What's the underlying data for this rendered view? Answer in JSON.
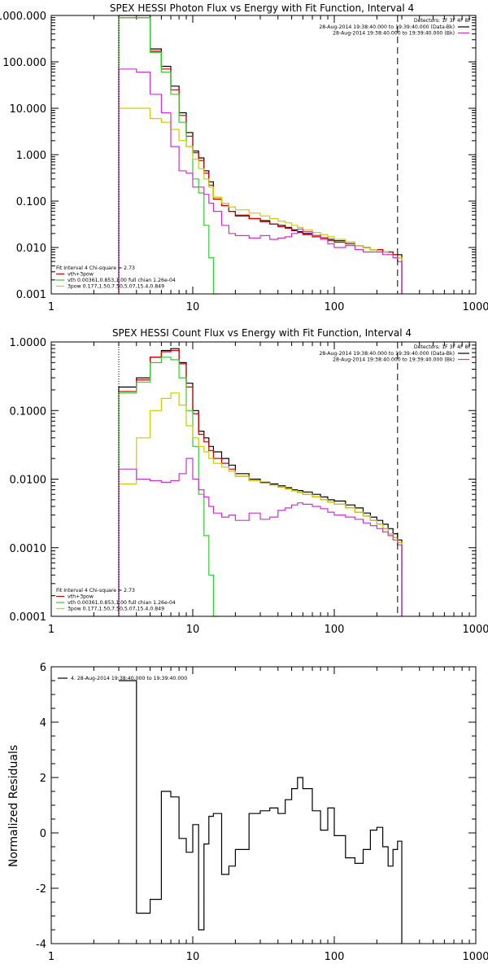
{
  "chart_data": [
    {
      "type": "line",
      "title": "SPEX HESSI Photon Flux vs Energy with Fit Function, Interval 4",
      "xlabel": "",
      "ylabel": "",
      "xscale": "log",
      "yscale": "log",
      "xlim": [
        1,
        1000
      ],
      "ylim": [
        0.001,
        1000
      ],
      "xticks": [
        "1",
        "10",
        "100",
        "1000"
      ],
      "yticks": [
        "1000.000",
        "100.000",
        "10.000",
        "1.000",
        "0.100",
        "0.010",
        "0.001"
      ],
      "detector_text": "Detectors: 1F 3F 4F 8F",
      "time_labels": [
        {
          "text": "28-Aug-2014 19:38:40.000 to 19:39:40.000 (Data-Bk)",
          "color": "#000000"
        },
        {
          "text": "28-Aug-2014 19:38:40.000 to 19:39:40.000 (Bk)",
          "color": "#cc33cc"
        }
      ],
      "fit_header": "Fit Interval 4   Chi-square = 2.73",
      "legend": [
        {
          "text": "vth+3pow",
          "color": "#cc0000"
        },
        {
          "text": "vth 0.00361,0.853,1.00  full chian 1.26e-04",
          "color": "#33cc33"
        },
        {
          "text": "3pow 0.177,1.50,7.50,5.07,15.4,0.849",
          "color": "#cccc00"
        }
      ],
      "fit_range_kev": [
        3,
        280
      ],
      "series": [
        {
          "name": "Data-Bk",
          "color": "#000000",
          "x": [
            3,
            4,
            5,
            6,
            7,
            8,
            9,
            10,
            11,
            12,
            13,
            14,
            16,
            18,
            20,
            25,
            30,
            35,
            40,
            45,
            50,
            55,
            60,
            70,
            80,
            90,
            100,
            120,
            140,
            160,
            180,
            200,
            220,
            240,
            260,
            280
          ],
          "y": [
            1000,
            1000,
            190,
            80,
            30,
            8,
            3,
            1.2,
            0.85,
            0.45,
            0.26,
            0.12,
            0.08,
            0.06,
            0.048,
            0.042,
            0.038,
            0.032,
            0.03,
            0.027,
            0.024,
            0.022,
            0.02,
            0.018,
            0.016,
            0.015,
            0.014,
            0.013,
            0.011,
            0.01,
            0.009,
            0.009,
            0.008,
            0.008,
            0.007,
            0.007
          ]
        },
        {
          "name": "vth+3pow",
          "color": "#cc0000",
          "x": [
            3,
            4,
            5,
            6,
            7,
            8,
            9,
            10,
            11,
            12,
            13,
            14,
            16,
            18,
            20,
            25,
            30,
            35,
            40,
            45,
            50,
            55,
            60,
            70,
            80,
            90,
            100,
            120,
            140,
            160,
            180,
            200,
            220,
            240,
            260,
            280
          ],
          "y": [
            900,
            900,
            170,
            70,
            25,
            7,
            2.5,
            1.1,
            0.75,
            0.4,
            0.22,
            0.11,
            0.08,
            0.06,
            0.05,
            0.042,
            0.036,
            0.032,
            0.028,
            0.026,
            0.023,
            0.021,
            0.019,
            0.017,
            0.016,
            0.014,
            0.013,
            0.012,
            0.011,
            0.01,
            0.009,
            0.009,
            0.008,
            0.008,
            0.007,
            0.006
          ]
        },
        {
          "name": "vth",
          "color": "#33cc33",
          "x": [
            3,
            4,
            5,
            6,
            7,
            8,
            9,
            10,
            11,
            12,
            13,
            14
          ],
          "y": [
            900,
            900,
            160,
            60,
            20,
            5,
            1.5,
            0.3,
            0.15,
            0.03,
            0.006,
            0.001
          ]
        },
        {
          "name": "3pow",
          "color": "#cccc00",
          "x": [
            3,
            4,
            5,
            6,
            7,
            8,
            9,
            10,
            11,
            12,
            13,
            14,
            16,
            18,
            20,
            25,
            30,
            35,
            40,
            45,
            50,
            55,
            60,
            70,
            80,
            90,
            100,
            120,
            140,
            160,
            180,
            200,
            220,
            240,
            260,
            280
          ],
          "y": [
            10,
            10,
            6,
            5,
            3.5,
            2,
            1.5,
            0.8,
            0.5,
            0.3,
            0.2,
            0.12,
            0.09,
            0.075,
            0.065,
            0.055,
            0.048,
            0.042,
            0.037,
            0.034,
            0.03,
            0.027,
            0.024,
            0.021,
            0.019,
            0.017,
            0.015,
            0.013,
            0.011,
            0.01,
            0.009,
            0.008,
            0.008,
            0.007,
            0.006,
            0.006
          ]
        },
        {
          "name": "Bk",
          "color": "#cc33cc",
          "x": [
            3,
            4,
            5,
            6,
            7,
            8,
            9,
            10,
            11,
            12,
            13,
            14,
            16,
            18,
            20,
            25,
            30,
            35,
            40,
            45,
            50,
            55,
            60,
            70,
            80,
            90,
            100,
            120,
            140,
            160,
            180,
            200,
            220,
            240,
            260,
            280
          ],
          "y": [
            70,
            60,
            20,
            8,
            1.5,
            0.45,
            0.4,
            0.2,
            0.2,
            0.14,
            0.09,
            0.06,
            0.03,
            0.02,
            0.018,
            0.016,
            0.018,
            0.015,
            0.016,
            0.017,
            0.02,
            0.025,
            0.022,
            0.018,
            0.015,
            0.012,
            0.01,
            0.011,
            0.009,
            0.008,
            0.008,
            0.008,
            0.007,
            0.007,
            0.006,
            0.005
          ]
        }
      ]
    },
    {
      "type": "line",
      "title": "SPEX HESSI Count Flux vs Energy with Fit Function, Interval 4",
      "xlabel": "",
      "ylabel": "",
      "xscale": "log",
      "yscale": "log",
      "xlim": [
        1,
        1000
      ],
      "ylim": [
        0.0001,
        1
      ],
      "xticks": [
        "1",
        "10",
        "100",
        "1000"
      ],
      "yticks": [
        "1.0000",
        "0.1000",
        "0.0100",
        "0.0010",
        "0.0001"
      ],
      "detector_text": "Detectors: 1F 3F 4F 8F",
      "time_labels": [
        {
          "text": "28-Aug-2014 19:38:40.000 to 19:39:40.000 (Data-Bk)",
          "color": "#000000"
        },
        {
          "text": "28-Aug-2014 19:38:40.000 to 19:39:40.000 (Bk)",
          "color": "#cc33cc"
        }
      ],
      "fit_header": "Fit Interval 4   Chi-square = 2.73",
      "legend": [
        {
          "text": "vth+3pow",
          "color": "#cc0000"
        },
        {
          "text": "vth 0.00361,0.853,1.00  full chian 1.26e-04",
          "color": "#33cc33"
        },
        {
          "text": "3pow 0.177,1.50,7.50,5.07,15.4,0.849",
          "color": "#cccc00"
        }
      ],
      "fit_range_kev": [
        3,
        280
      ],
      "series": [
        {
          "name": "Data-Bk",
          "color": "#000000",
          "x": [
            3,
            4,
            5,
            6,
            7,
            8,
            9,
            10,
            11,
            12,
            13,
            14,
            16,
            18,
            20,
            25,
            30,
            35,
            40,
            45,
            50,
            55,
            60,
            70,
            80,
            90,
            100,
            120,
            140,
            160,
            180,
            200,
            220,
            240,
            260,
            280
          ],
          "y": [
            0.22,
            0.3,
            0.6,
            0.75,
            0.8,
            0.5,
            0.25,
            0.1,
            0.05,
            0.04,
            0.03,
            0.025,
            0.02,
            0.016,
            0.012,
            0.01,
            0.009,
            0.0085,
            0.008,
            0.0075,
            0.007,
            0.0068,
            0.0065,
            0.006,
            0.0055,
            0.005,
            0.0048,
            0.0042,
            0.0038,
            0.0032,
            0.0028,
            0.0025,
            0.0022,
            0.0019,
            0.0016,
            0.0013
          ]
        },
        {
          "name": "vth+3pow",
          "color": "#cc0000",
          "x": [
            3,
            4,
            5,
            6,
            7,
            8,
            9,
            10,
            11,
            12,
            13,
            14,
            16,
            18,
            20,
            25,
            30,
            35,
            40,
            45,
            50,
            55,
            60,
            70,
            80,
            90,
            100,
            120,
            140,
            160,
            180,
            200,
            220,
            240,
            260,
            280
          ],
          "y": [
            0.19,
            0.28,
            0.6,
            0.72,
            0.75,
            0.48,
            0.22,
            0.09,
            0.045,
            0.035,
            0.026,
            0.02,
            0.017,
            0.014,
            0.011,
            0.0095,
            0.0088,
            0.0082,
            0.0077,
            0.0072,
            0.0068,
            0.0064,
            0.006,
            0.0055,
            0.005,
            0.0046,
            0.0043,
            0.0038,
            0.0033,
            0.0029,
            0.0025,
            0.0022,
            0.0019,
            0.0016,
            0.0014,
            0.0012
          ]
        },
        {
          "name": "vth",
          "color": "#33cc33",
          "x": [
            3,
            4,
            5,
            6,
            7,
            8,
            9,
            10,
            11,
            12,
            13,
            14
          ],
          "y": [
            0.18,
            0.26,
            0.5,
            0.6,
            0.55,
            0.3,
            0.1,
            0.03,
            0.006,
            0.0015,
            0.0004,
            0.0001
          ]
        },
        {
          "name": "3pow",
          "color": "#cccc00",
          "x": [
            3,
            4,
            5,
            6,
            7,
            8,
            9,
            10,
            11,
            12,
            13,
            14,
            16,
            18,
            20,
            25,
            30,
            35,
            40,
            45,
            50,
            55,
            60,
            70,
            80,
            90,
            100,
            120,
            140,
            160,
            180,
            200,
            220,
            240,
            260,
            280
          ],
          "y": [
            0.0085,
            0.04,
            0.1,
            0.15,
            0.18,
            0.12,
            0.06,
            0.04,
            0.03,
            0.025,
            0.02,
            0.017,
            0.015,
            0.013,
            0.011,
            0.0095,
            0.0088,
            0.0082,
            0.0077,
            0.0072,
            0.0068,
            0.0064,
            0.006,
            0.0055,
            0.005,
            0.0046,
            0.0043,
            0.0038,
            0.0033,
            0.0029,
            0.0025,
            0.0022,
            0.0019,
            0.0016,
            0.0014,
            0.0012
          ]
        },
        {
          "name": "Bk",
          "color": "#cc33cc",
          "x": [
            3,
            4,
            5,
            6,
            7,
            8,
            9,
            10,
            11,
            12,
            13,
            14,
            16,
            18,
            20,
            25,
            30,
            35,
            40,
            45,
            50,
            55,
            60,
            70,
            80,
            90,
            100,
            120,
            140,
            160,
            180,
            200,
            220,
            240,
            260,
            280
          ],
          "y": [
            0.014,
            0.01,
            0.0095,
            0.009,
            0.0095,
            0.012,
            0.02,
            0.01,
            0.007,
            0.0055,
            0.004,
            0.0032,
            0.0028,
            0.003,
            0.0025,
            0.0032,
            0.0026,
            0.0028,
            0.0035,
            0.0038,
            0.0042,
            0.0045,
            0.0043,
            0.004,
            0.0037,
            0.0033,
            0.003,
            0.0028,
            0.0026,
            0.0023,
            0.0021,
            0.0019,
            0.0017,
            0.0015,
            0.0013,
            0.0011
          ]
        }
      ]
    },
    {
      "type": "line",
      "title": "",
      "xlabel": "",
      "ylabel": "Normalized Residuals",
      "xscale": "log",
      "yscale": "linear",
      "xlim": [
        1,
        1000
      ],
      "ylim": [
        -4,
        6
      ],
      "xticks": [
        "1",
        "10",
        "100",
        "1000"
      ],
      "yticks": [
        "6",
        "4",
        "2",
        "0",
        "-2",
        "-4"
      ],
      "legend": [
        {
          "text": "4. 28-Aug-2014 19:38:40.000 to 19:39:40.000",
          "color": "#000000"
        }
      ],
      "series": [
        {
          "name": "",
          "color": "#000000",
          "x": [
            3,
            4,
            5,
            6,
            7,
            8,
            9,
            10,
            11,
            12,
            13,
            14,
            16,
            18,
            20,
            25,
            30,
            35,
            40,
            45,
            50,
            55,
            60,
            70,
            80,
            90,
            100,
            120,
            140,
            160,
            180,
            200,
            220,
            240,
            260,
            280
          ],
          "y": [
            5.5,
            -2.9,
            -2.4,
            1.5,
            1.3,
            -0.2,
            -0.7,
            0.3,
            -3.5,
            -0.4,
            0.6,
            0.7,
            -1.5,
            -1.2,
            -0.6,
            0.7,
            0.8,
            0.9,
            0.7,
            1.2,
            1.6,
            2.0,
            1.6,
            0.8,
            0.1,
            0.9,
            -0.1,
            -0.9,
            -1.1,
            -0.6,
            0.1,
            0.2,
            -0.5,
            -1.2,
            -0.6,
            -0.3
          ]
        }
      ]
    }
  ]
}
